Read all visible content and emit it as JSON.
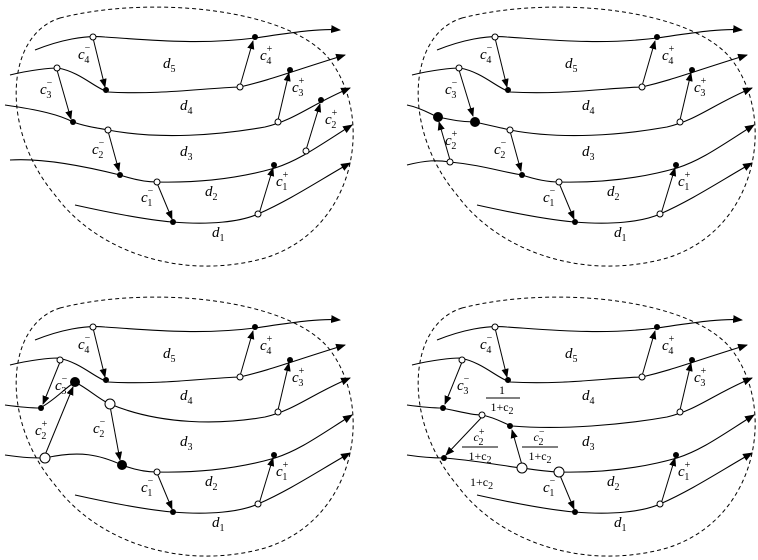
{
  "panels": [
    {
      "id": "top-left",
      "labels": {
        "d5": "d",
        "d5s": "5",
        "d4": "d",
        "d4s": "4",
        "d3": "d",
        "d3s": "3",
        "d2": "d",
        "d2s": "2",
        "d1": "d",
        "d1s": "1"
      }
    },
    {
      "id": "top-right"
    },
    {
      "id": "bottom-left"
    },
    {
      "id": "bottom-right"
    }
  ],
  "symbols": {
    "c": "c",
    "d": "d",
    "minus": "−",
    "plus": "+",
    "one": "1",
    "one_plus_c2": "1+c",
    "two": "2"
  },
  "fractions": {
    "f1_num": "1",
    "f1_den": "1+c",
    "f2_num": "c",
    "f2_den": "1+c",
    "f3_num": "c",
    "f3_den": "1+c",
    "plain": "1+c"
  },
  "colors": {
    "stroke": "#000000",
    "fill_dark": "#000000",
    "fill_light": "#ffffff"
  }
}
